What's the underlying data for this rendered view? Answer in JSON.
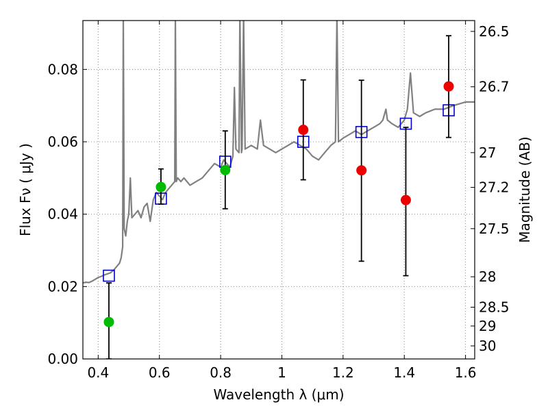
{
  "chart_data": {
    "type": "scatter",
    "xlabel": "Wavelength  λ (μm)",
    "ylabel": "Flux  Fν  ( μJy )",
    "ylabel_right": "Magnitude (AB)",
    "xlim": [
      0.35,
      1.63
    ],
    "ylim": [
      0.0,
      0.0935
    ],
    "grid": true,
    "x_ticks": [
      0.4,
      0.6,
      0.8,
      1.0,
      1.2,
      1.4,
      1.6
    ],
    "x_tick_labels": [
      "0.4",
      "0.6",
      "0.8",
      "1",
      "1.2",
      "1.4",
      "1.6"
    ],
    "y_ticks": [
      0.0,
      0.02,
      0.04,
      0.06,
      0.08
    ],
    "y_tick_labels": [
      "0.00",
      "0.02",
      "0.04",
      "0.06",
      "0.08"
    ],
    "right_ticks": [
      {
        "label": "26.5",
        "flux": 0.0905
      },
      {
        "label": "26.7",
        "flux": 0.0752
      },
      {
        "label": "27",
        "flux": 0.057
      },
      {
        "label": "27.2",
        "flux": 0.0474
      },
      {
        "label": "27.5",
        "flux": 0.036
      },
      {
        "label": "28",
        "flux": 0.0227
      },
      {
        "label": "28.5",
        "flux": 0.0143
      },
      {
        "label": "29",
        "flux": 0.0091
      },
      {
        "label": "30",
        "flux": 0.0036
      }
    ],
    "colors": {
      "template": "#808080",
      "model_box": "#0000cc",
      "green_points": "#00bb00",
      "red_points": "#ee0000",
      "errorbar": "#000000",
      "grid": "#888888"
    },
    "series": [
      {
        "kind": "line",
        "points": [
          [
            0.35,
            0.021
          ],
          [
            0.36,
            0.0212
          ],
          [
            0.37,
            0.0211
          ],
          [
            0.38,
            0.0215
          ],
          [
            0.39,
            0.022
          ],
          [
            0.4,
            0.0225
          ],
          [
            0.41,
            0.0228
          ],
          [
            0.42,
            0.0232
          ],
          [
            0.43,
            0.0235
          ],
          [
            0.44,
            0.0238
          ],
          [
            0.45,
            0.0245
          ],
          [
            0.46,
            0.0255
          ],
          [
            0.47,
            0.0265
          ],
          [
            0.475,
            0.028
          ],
          [
            0.48,
            0.031
          ],
          [
            0.482,
            0.095
          ],
          [
            0.485,
            0.036
          ],
          [
            0.49,
            0.034
          ],
          [
            0.495,
            0.038
          ],
          [
            0.5,
            0.04
          ],
          [
            0.505,
            0.05
          ],
          [
            0.51,
            0.039
          ],
          [
            0.52,
            0.04
          ],
          [
            0.53,
            0.041
          ],
          [
            0.54,
            0.039
          ],
          [
            0.55,
            0.042
          ],
          [
            0.56,
            0.043
          ],
          [
            0.57,
            0.038
          ],
          [
            0.58,
            0.044
          ],
          [
            0.59,
            0.046
          ],
          [
            0.6,
            0.045
          ],
          [
            0.61,
            0.044
          ],
          [
            0.62,
            0.046
          ],
          [
            0.63,
            0.047
          ],
          [
            0.64,
            0.048
          ],
          [
            0.65,
            0.049
          ],
          [
            0.652,
            0.095
          ],
          [
            0.655,
            0.049
          ],
          [
            0.66,
            0.05
          ],
          [
            0.67,
            0.049
          ],
          [
            0.68,
            0.05
          ],
          [
            0.7,
            0.048
          ],
          [
            0.72,
            0.049
          ],
          [
            0.74,
            0.05
          ],
          [
            0.76,
            0.052
          ],
          [
            0.78,
            0.054
          ],
          [
            0.8,
            0.053
          ],
          [
            0.81,
            0.055
          ],
          [
            0.82,
            0.054
          ],
          [
            0.83,
            0.053
          ],
          [
            0.84,
            0.056
          ],
          [
            0.845,
            0.075
          ],
          [
            0.85,
            0.058
          ],
          [
            0.86,
            0.057
          ],
          [
            0.863,
            0.095
          ],
          [
            0.868,
            0.057
          ],
          [
            0.87,
            0.058
          ],
          [
            0.875,
            0.095
          ],
          [
            0.88,
            0.058
          ],
          [
            0.9,
            0.059
          ],
          [
            0.92,
            0.058
          ],
          [
            0.93,
            0.066
          ],
          [
            0.94,
            0.059
          ],
          [
            0.96,
            0.058
          ],
          [
            0.98,
            0.057
          ],
          [
            1.0,
            0.058
          ],
          [
            1.02,
            0.059
          ],
          [
            1.04,
            0.06
          ],
          [
            1.06,
            0.059
          ],
          [
            1.08,
            0.058
          ],
          [
            1.09,
            0.057
          ],
          [
            1.1,
            0.056
          ],
          [
            1.12,
            0.055
          ],
          [
            1.14,
            0.057
          ],
          [
            1.16,
            0.059
          ],
          [
            1.175,
            0.06
          ],
          [
            1.18,
            0.095
          ],
          [
            1.185,
            0.06
          ],
          [
            1.2,
            0.061
          ],
          [
            1.22,
            0.062
          ],
          [
            1.24,
            0.063
          ],
          [
            1.26,
            0.062
          ],
          [
            1.28,
            0.063
          ],
          [
            1.3,
            0.064
          ],
          [
            1.32,
            0.065
          ],
          [
            1.33,
            0.066
          ],
          [
            1.34,
            0.069
          ],
          [
            1.345,
            0.066
          ],
          [
            1.36,
            0.065
          ],
          [
            1.38,
            0.064
          ],
          [
            1.4,
            0.066
          ],
          [
            1.41,
            0.069
          ],
          [
            1.42,
            0.079
          ],
          [
            1.43,
            0.068
          ],
          [
            1.45,
            0.067
          ],
          [
            1.47,
            0.068
          ],
          [
            1.5,
            0.069
          ],
          [
            1.53,
            0.069
          ],
          [
            1.56,
            0.07
          ],
          [
            1.6,
            0.071
          ],
          [
            1.63,
            0.071
          ]
        ]
      },
      {
        "kind": "model_boxes",
        "x": [
          0.435,
          0.605,
          0.815,
          1.07,
          1.26,
          1.405,
          1.545
        ],
        "y": [
          0.023,
          0.0443,
          0.0545,
          0.06,
          0.0627,
          0.065,
          0.0687
        ]
      },
      {
        "kind": "points",
        "color_key": "green_points",
        "x": [
          0.435,
          0.605,
          0.815
        ],
        "y": [
          0.0102,
          0.0475,
          0.0522
        ],
        "err_low": [
          0.0102,
          0.0047,
          0.0107
        ],
        "err_high": [
          0.0108,
          0.005,
          0.0108
        ]
      },
      {
        "kind": "points",
        "color_key": "red_points",
        "x": [
          1.07,
          1.26,
          1.405,
          1.545
        ],
        "y": [
          0.0633,
          0.0521,
          0.0439,
          0.0753
        ],
        "err_low": [
          0.0138,
          0.0251,
          0.0209,
          0.0141
        ],
        "err_high": [
          0.0138,
          0.0249,
          0.0201,
          0.014
        ]
      }
    ]
  }
}
